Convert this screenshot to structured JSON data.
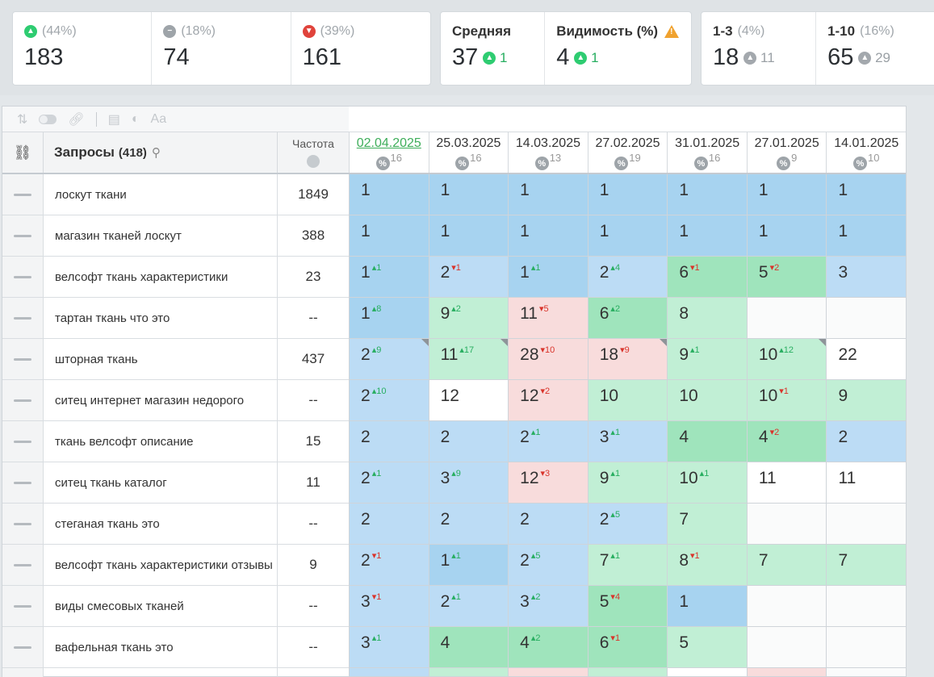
{
  "summary": {
    "up": {
      "pct": "(44%)",
      "value": "183"
    },
    "same": {
      "pct": "(18%)",
      "value": "74"
    },
    "down": {
      "pct": "(39%)",
      "value": "161"
    },
    "avg": {
      "label": "Средняя",
      "value": "37",
      "delta": "1"
    },
    "visibility": {
      "label": "Видимость (%)",
      "value": "4",
      "delta": "1"
    },
    "top3": {
      "label": "1-3",
      "pct": "(4%)",
      "value": "18",
      "delta": "11"
    },
    "top10": {
      "label": "1-10",
      "pct": "(16%)",
      "value": "65",
      "delta": "29"
    }
  },
  "table": {
    "query_header": "Запросы",
    "query_count": "(418)",
    "freq_header": "Частота",
    "dates": [
      {
        "date": "02.04.2025",
        "n": "16"
      },
      {
        "date": "25.03.2025",
        "n": "16"
      },
      {
        "date": "14.03.2025",
        "n": "13"
      },
      {
        "date": "27.02.2025",
        "n": "19"
      },
      {
        "date": "31.01.2025",
        "n": "16"
      },
      {
        "date": "27.01.2025",
        "n": "9"
      },
      {
        "date": "14.01.2025",
        "n": "10"
      }
    ],
    "rows": [
      {
        "query": "лоскут ткани",
        "freq": "1849",
        "cells": [
          {
            "v": "1",
            "c": "b1"
          },
          {
            "v": "1",
            "c": "b1"
          },
          {
            "v": "1",
            "c": "b1"
          },
          {
            "v": "1",
            "c": "b1"
          },
          {
            "v": "1",
            "c": "b1"
          },
          {
            "v": "1",
            "c": "b1"
          },
          {
            "v": "1",
            "c": "b1"
          }
        ]
      },
      {
        "query": "магазин тканей лоскут",
        "freq": "388",
        "cells": [
          {
            "v": "1",
            "c": "b1"
          },
          {
            "v": "1",
            "c": "b1"
          },
          {
            "v": "1",
            "c": "b1"
          },
          {
            "v": "1",
            "c": "b1"
          },
          {
            "v": "1",
            "c": "b1"
          },
          {
            "v": "1",
            "c": "b1"
          },
          {
            "v": "1",
            "c": "b1"
          }
        ]
      },
      {
        "query": "велсофт ткань характеристики",
        "freq": "23",
        "cells": [
          {
            "v": "1",
            "d": "1",
            "dir": "up",
            "c": "b1"
          },
          {
            "v": "2",
            "d": "1",
            "dir": "dn",
            "c": "b2"
          },
          {
            "v": "1",
            "d": "1",
            "dir": "up",
            "c": "b1"
          },
          {
            "v": "2",
            "d": "4",
            "dir": "up",
            "c": "b2"
          },
          {
            "v": "6",
            "d": "1",
            "dir": "dn",
            "c": "g1"
          },
          {
            "v": "5",
            "d": "2",
            "dir": "dn",
            "c": "g1"
          },
          {
            "v": "3",
            "c": "b2"
          }
        ]
      },
      {
        "query": "тартан ткань что это",
        "freq": "--",
        "cells": [
          {
            "v": "1",
            "d": "8",
            "dir": "up",
            "c": "b1"
          },
          {
            "v": "9",
            "d": "2",
            "dir": "up",
            "c": "g2"
          },
          {
            "v": "11",
            "d": "5",
            "dir": "dn",
            "c": "r1"
          },
          {
            "v": "6",
            "d": "2",
            "dir": "up",
            "c": "g1"
          },
          {
            "v": "8",
            "c": "g2"
          },
          {
            "v": "",
            "c": "e"
          },
          {
            "v": "",
            "c": "e"
          }
        ]
      },
      {
        "query": "шторная ткань",
        "freq": "437",
        "cells": [
          {
            "v": "2",
            "d": "9",
            "dir": "up",
            "c": "b2",
            "corner": true
          },
          {
            "v": "11",
            "d": "17",
            "dir": "up",
            "c": "g2",
            "corner": true
          },
          {
            "v": "28",
            "d": "10",
            "dir": "dn",
            "c": "r1"
          },
          {
            "v": "18",
            "d": "9",
            "dir": "dn",
            "c": "r1",
            "corner": true
          },
          {
            "v": "9",
            "d": "1",
            "dir": "up",
            "c": "g2"
          },
          {
            "v": "10",
            "d": "12",
            "dir": "up",
            "c": "g2",
            "corner": true
          },
          {
            "v": "22",
            "c": "w"
          }
        ]
      },
      {
        "query": "ситец интернет магазин недорого",
        "freq": "--",
        "cells": [
          {
            "v": "2",
            "d": "10",
            "dir": "up",
            "c": "b2"
          },
          {
            "v": "12",
            "c": "w"
          },
          {
            "v": "12",
            "d": "2",
            "dir": "dn",
            "c": "r1"
          },
          {
            "v": "10",
            "c": "g2"
          },
          {
            "v": "10",
            "c": "g2"
          },
          {
            "v": "10",
            "d": "1",
            "dir": "dn",
            "c": "g2"
          },
          {
            "v": "9",
            "c": "g2"
          }
        ]
      },
      {
        "query": "ткань велсофт описание",
        "freq": "15",
        "cells": [
          {
            "v": "2",
            "c": "b2"
          },
          {
            "v": "2",
            "c": "b2"
          },
          {
            "v": "2",
            "d": "1",
            "dir": "up",
            "c": "b2"
          },
          {
            "v": "3",
            "d": "1",
            "dir": "up",
            "c": "b2"
          },
          {
            "v": "4",
            "c": "g1"
          },
          {
            "v": "4",
            "d": "2",
            "dir": "dn",
            "c": "g1"
          },
          {
            "v": "2",
            "c": "b2"
          }
        ]
      },
      {
        "query": "ситец ткань каталог",
        "freq": "11",
        "cells": [
          {
            "v": "2",
            "d": "1",
            "dir": "up",
            "c": "b2"
          },
          {
            "v": "3",
            "d": "9",
            "dir": "up",
            "c": "b2"
          },
          {
            "v": "12",
            "d": "3",
            "dir": "dn",
            "c": "r1"
          },
          {
            "v": "9",
            "d": "1",
            "dir": "up",
            "c": "g2"
          },
          {
            "v": "10",
            "d": "1",
            "dir": "up",
            "c": "g2"
          },
          {
            "v": "11",
            "c": "w"
          },
          {
            "v": "11",
            "c": "w"
          }
        ]
      },
      {
        "query": "стеганая ткань это",
        "freq": "--",
        "cells": [
          {
            "v": "2",
            "c": "b2"
          },
          {
            "v": "2",
            "c": "b2"
          },
          {
            "v": "2",
            "c": "b2"
          },
          {
            "v": "2",
            "d": "5",
            "dir": "up",
            "c": "b2"
          },
          {
            "v": "7",
            "c": "g2"
          },
          {
            "v": "",
            "c": "e"
          },
          {
            "v": "",
            "c": "e"
          }
        ]
      },
      {
        "query": "велсофт ткань характеристики отзывы",
        "freq": "9",
        "cells": [
          {
            "v": "2",
            "d": "1",
            "dir": "dn",
            "c": "b2"
          },
          {
            "v": "1",
            "d": "1",
            "dir": "up",
            "c": "b1"
          },
          {
            "v": "2",
            "d": "5",
            "dir": "up",
            "c": "b2"
          },
          {
            "v": "7",
            "d": "1",
            "dir": "up",
            "c": "g2"
          },
          {
            "v": "8",
            "d": "1",
            "dir": "dn",
            "c": "g2"
          },
          {
            "v": "7",
            "c": "g2"
          },
          {
            "v": "7",
            "c": "g2"
          }
        ]
      },
      {
        "query": "виды смесовых тканей",
        "freq": "--",
        "cells": [
          {
            "v": "3",
            "d": "1",
            "dir": "dn",
            "c": "b2"
          },
          {
            "v": "2",
            "d": "1",
            "dir": "up",
            "c": "b2"
          },
          {
            "v": "3",
            "d": "2",
            "dir": "up",
            "c": "b2"
          },
          {
            "v": "5",
            "d": "4",
            "dir": "dn",
            "c": "g1"
          },
          {
            "v": "1",
            "c": "b1"
          },
          {
            "v": "",
            "c": "e"
          },
          {
            "v": "",
            "c": "e"
          }
        ]
      },
      {
        "query": "вафельная ткань это",
        "freq": "--",
        "cells": [
          {
            "v": "3",
            "d": "1",
            "dir": "up",
            "c": "b2"
          },
          {
            "v": "4",
            "c": "g1"
          },
          {
            "v": "4",
            "d": "2",
            "dir": "up",
            "c": "g1"
          },
          {
            "v": "6",
            "d": "1",
            "dir": "dn",
            "c": "g1"
          },
          {
            "v": "5",
            "c": "g2"
          },
          {
            "v": "",
            "c": "e"
          },
          {
            "v": "",
            "c": "e"
          }
        ]
      },
      {
        "query": "",
        "freq": "",
        "cells": [
          {
            "v": "",
            "c": "b2"
          },
          {
            "v": "",
            "c": "g2"
          },
          {
            "v": "",
            "c": "r1"
          },
          {
            "v": "",
            "c": "g2"
          },
          {
            "v": "",
            "c": "w"
          },
          {
            "v": "",
            "c": "r1"
          },
          {
            "v": "",
            "c": "e"
          }
        ]
      }
    ]
  }
}
